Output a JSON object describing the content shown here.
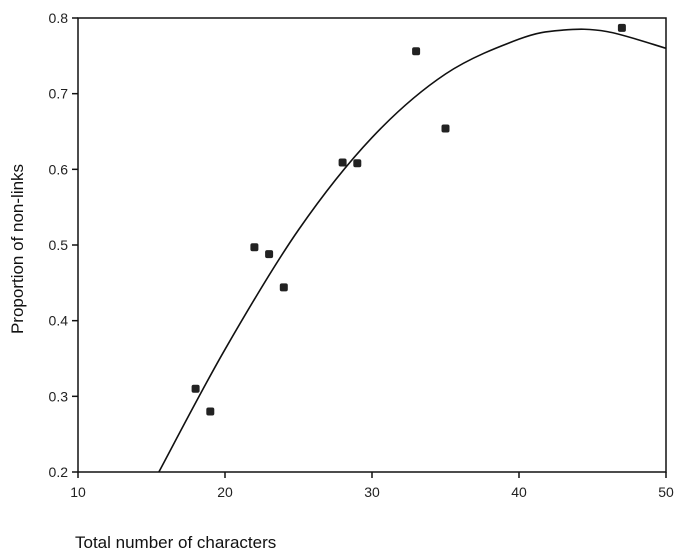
{
  "chart_data": {
    "type": "scatter",
    "title": "",
    "xlabel": "Total number of characters",
    "ylabel": "Proportion of non-links",
    "xlim": [
      10,
      50
    ],
    "ylim": [
      0.2,
      0.8
    ],
    "x_ticks": [
      10,
      20,
      30,
      40,
      50
    ],
    "y_ticks": [
      0.2,
      0.3,
      0.4,
      0.5,
      0.6,
      0.7,
      0.8
    ],
    "grid": false,
    "legend": "none",
    "series": [
      {
        "kind": "scatter",
        "x": [
          18,
          19,
          22,
          23,
          24,
          28,
          29,
          33,
          35,
          47
        ],
        "y": [
          0.31,
          0.28,
          0.497,
          0.488,
          0.444,
          0.609,
          0.608,
          0.756,
          0.654,
          0.787
        ]
      },
      {
        "kind": "line",
        "x": [
          15.5,
          20,
          25,
          30,
          35,
          40,
          43,
          46,
          50
        ],
        "y": [
          0.2,
          0.362,
          0.52,
          0.642,
          0.726,
          0.772,
          0.784,
          0.782,
          0.76
        ]
      }
    ],
    "colors": {
      "marker": "#222222",
      "line": "#111111",
      "axis": "#111111"
    }
  }
}
